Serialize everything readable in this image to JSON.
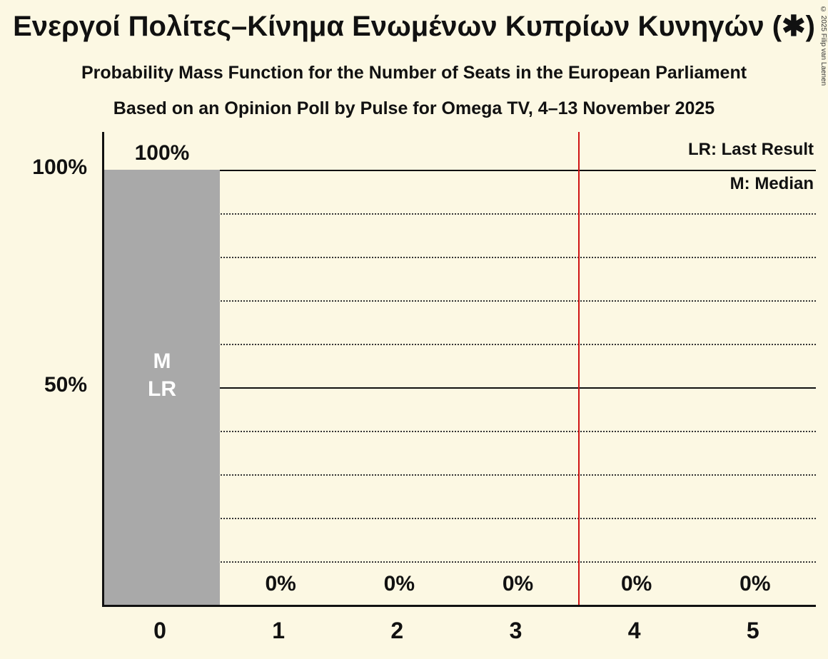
{
  "title": "Ενεργοί Πολίτες–Κίνημα Ενωμένων Κυπρίων Κυνηγών (✱)",
  "subtitle": "Probability Mass Function for the Number of Seats in the European Parliament",
  "subsubtitle": "Based on an Opinion Poll by Pulse for Omega TV, 4–13 November 2025",
  "copyright": "© 2025 Filip van Laenen",
  "legend": {
    "lr": "LR: Last Result",
    "m": "M: Median"
  },
  "colors": {
    "background": "#fcf8e3",
    "bar": "#a9a9a9",
    "bar_label": "#ffffff",
    "text": "#111111",
    "red_line": "#d01414"
  },
  "chart_data": {
    "type": "bar",
    "title": "Probability Mass Function for the Number of Seats in the European Parliament",
    "categories": [
      "0",
      "1",
      "2",
      "3",
      "4",
      "5"
    ],
    "values": [
      100,
      0,
      0,
      0,
      0,
      0
    ],
    "value_labels": [
      "100%",
      "0%",
      "0%",
      "0%",
      "0%",
      "0%"
    ],
    "xlabel": "",
    "ylabel": "",
    "ylim": [
      0,
      108.7
    ],
    "y_axis_ticks": [
      {
        "percent": 100,
        "label": "100%"
      },
      {
        "percent": 50,
        "label": "50%"
      }
    ],
    "solid_gridlines": [
      100,
      50
    ],
    "dotted_gridlines": [
      90,
      80,
      70,
      60,
      40,
      30,
      20,
      10
    ],
    "bar_annotations": [
      {
        "category_index": 0,
        "lines": [
          "M",
          "LR"
        ]
      }
    ],
    "red_line_boundary_index": 4,
    "legend_position": "top-right",
    "grid": "horizontal"
  }
}
